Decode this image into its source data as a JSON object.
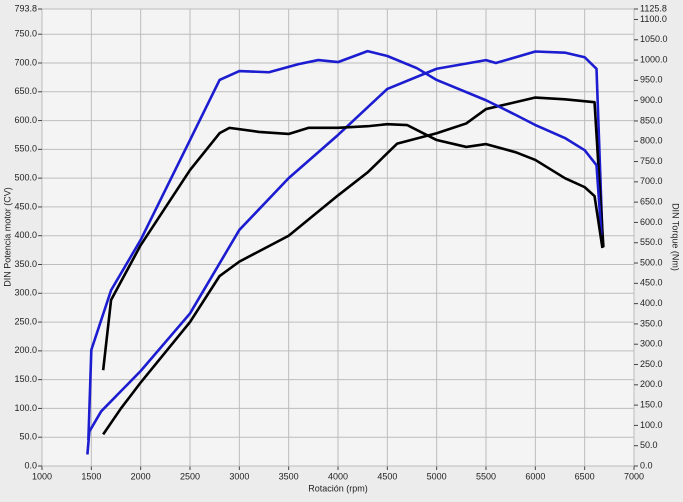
{
  "chart_data": {
    "type": "line",
    "xlabel": "Rotación (rpm)",
    "ylabel": "DIN Potencia motor (CV)",
    "y2label": "DIN Torque (Nm)",
    "xlim": [
      1000,
      7000
    ],
    "xticks": [
      1000,
      1500,
      2000,
      2500,
      3000,
      3500,
      4000,
      4500,
      5000,
      5500,
      6000,
      6500,
      7000
    ],
    "ylim": [
      0,
      793.8
    ],
    "yticks": [
      {
        "value": 0,
        "label": "0.0"
      },
      {
        "value": 50,
        "label": "50.0"
      },
      {
        "value": 100,
        "label": "100.0"
      },
      {
        "value": 150,
        "label": "150.0"
      },
      {
        "value": 200,
        "label": "200.0"
      },
      {
        "value": 250,
        "label": "250.0"
      },
      {
        "value": 300,
        "label": "300.0"
      },
      {
        "value": 350,
        "label": "350.0"
      },
      {
        "value": 400,
        "label": "400.0"
      },
      {
        "value": 450,
        "label": "450.0"
      },
      {
        "value": 500,
        "label": "500.0"
      },
      {
        "value": 550,
        "label": "550.0"
      },
      {
        "value": 600,
        "label": "600.0"
      },
      {
        "value": 650,
        "label": "650.0"
      },
      {
        "value": 700,
        "label": "700.0"
      },
      {
        "value": 750,
        "label": "750.0"
      },
      {
        "value": 793.8,
        "label": "793.8"
      }
    ],
    "y2lim": [
      0,
      1125.8
    ],
    "y2ticks": [
      {
        "value": 0,
        "label": "0.0"
      },
      {
        "value": 50,
        "label": "50.0"
      },
      {
        "value": 100,
        "label": "100.0"
      },
      {
        "value": 150,
        "label": "150.0"
      },
      {
        "value": 200,
        "label": "200.0"
      },
      {
        "value": 250,
        "label": "250.0"
      },
      {
        "value": 300,
        "label": "300.0"
      },
      {
        "value": 350,
        "label": "350.0"
      },
      {
        "value": 400,
        "label": "400.0"
      },
      {
        "value": 450,
        "label": "450.0"
      },
      {
        "value": 500,
        "label": "500.0"
      },
      {
        "value": 550,
        "label": "550.0"
      },
      {
        "value": 600,
        "label": "600.0"
      },
      {
        "value": 650,
        "label": "650.0"
      },
      {
        "value": 700,
        "label": "700.0"
      },
      {
        "value": 750,
        "label": "750.0"
      },
      {
        "value": 800,
        "label": "800.0"
      },
      {
        "value": 850,
        "label": "850.0"
      },
      {
        "value": 900,
        "label": "900.0"
      },
      {
        "value": 950,
        "label": "950.0"
      },
      {
        "value": 1000,
        "label": "1000.0"
      },
      {
        "value": 1050,
        "label": "1050.0"
      },
      {
        "value": 1100,
        "label": "1100.0"
      },
      {
        "value": 1125.8,
        "label": "1125.8"
      }
    ],
    "grid": true,
    "series": [
      {
        "color": "#1c1cd0",
        "x": [
          1460,
          1480,
          1600,
          2000,
          2500,
          3000,
          3500,
          4000,
          4500,
          5000,
          5500,
          5600,
          6000,
          6300,
          6500,
          6620,
          6680
        ],
        "values": [
          20,
          60,
          95,
          165,
          265,
          410,
          500,
          575,
          655,
          690,
          705,
          700,
          720,
          718,
          710,
          690,
          400
        ]
      },
      {
        "color": "#000000",
        "x": [
          1620,
          1800,
          2000,
          2500,
          2800,
          3000,
          3500,
          4000,
          4300,
          4600,
          5000,
          5300,
          5500,
          6000,
          6300,
          6600,
          6690
        ],
        "values": [
          55,
          100,
          145,
          250,
          330,
          355,
          400,
          470,
          510,
          560,
          578,
          595,
          620,
          640,
          637,
          632,
          380
        ]
      },
      {
        "color": "#1c1cd0",
        "axis": "y2",
        "x": [
          1470,
          1500,
          1700,
          2000,
          2500,
          2800,
          3000,
          3300,
          3600,
          3800,
          4000,
          4300,
          4500,
          4800,
          5000,
          5500,
          5800,
          6000,
          6300,
          6500,
          6620,
          6670
        ],
        "values": [
          64,
          286,
          433,
          557,
          803,
          951,
          973,
          970,
          990,
          1000,
          995,
          1022,
          1010,
          980,
          951,
          901,
          865,
          840,
          808,
          778,
          741,
          569
        ]
      },
      {
        "color": "#000000",
        "axis": "y2",
        "x": [
          1620,
          1700,
          2000,
          2500,
          2800,
          2900,
          3200,
          3500,
          3700,
          4000,
          4300,
          4500,
          4700,
          5000,
          5300,
          5500,
          5800,
          6000,
          6300,
          6500,
          6600,
          6680
        ],
        "values": [
          236,
          409,
          544,
          729,
          820,
          833,
          823,
          818,
          833,
          833,
          837,
          842,
          840,
          803,
          786,
          793,
          773,
          754,
          709,
          687,
          665,
          537
        ]
      }
    ]
  }
}
